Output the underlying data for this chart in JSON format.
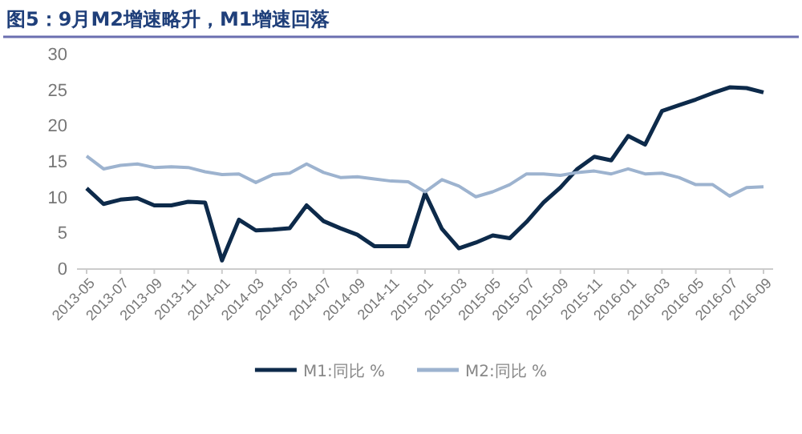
{
  "chart_data": {
    "type": "line",
    "title": "图5：9月M2增速略升，M1增速回落",
    "categories": [
      "2013-05",
      null,
      "2013-07",
      null,
      "2013-09",
      null,
      "2013-11",
      null,
      "2014-01",
      null,
      "2014-03",
      null,
      "2014-05",
      null,
      "2014-07",
      null,
      "2014-09",
      null,
      "2014-11",
      null,
      "2015-01",
      null,
      "2015-03",
      null,
      "2015-05",
      null,
      "2015-07",
      null,
      "2015-09",
      null,
      "2015-11",
      null,
      "2016-01",
      null,
      "2016-03",
      null,
      "2016-05",
      null,
      "2016-07",
      null,
      "2016-09"
    ],
    "series": [
      {
        "name": "M1:同比 %",
        "color": "#0d2a4a",
        "values": [
          11.3,
          9.1,
          9.7,
          9.9,
          8.9,
          8.9,
          9.4,
          9.3,
          1.2,
          6.9,
          5.4,
          5.5,
          5.7,
          8.9,
          6.7,
          5.7,
          4.8,
          3.2,
          3.2,
          3.2,
          10.6,
          5.6,
          2.9,
          3.7,
          4.7,
          4.3,
          6.6,
          9.3,
          11.4,
          14.0,
          15.7,
          15.2,
          18.6,
          17.4,
          22.1,
          22.9,
          23.7,
          24.6,
          25.4,
          25.3,
          24.7
        ]
      },
      {
        "name": "M2:同比 %",
        "color": "#9db3cf",
        "values": [
          15.8,
          14.0,
          14.5,
          14.7,
          14.2,
          14.3,
          14.2,
          13.6,
          13.2,
          13.3,
          12.1,
          13.2,
          13.4,
          14.7,
          13.5,
          12.8,
          12.9,
          12.6,
          12.3,
          12.2,
          10.8,
          12.5,
          11.6,
          10.1,
          10.8,
          11.8,
          13.3,
          13.3,
          13.1,
          13.5,
          13.7,
          13.3,
          14.0,
          13.3,
          13.4,
          12.8,
          11.8,
          11.8,
          10.2,
          11.4,
          11.5
        ]
      }
    ],
    "ylim": [
      0,
      30
    ],
    "yticks": [
      0,
      5,
      10,
      15,
      20,
      25,
      30
    ],
    "grid": false,
    "legend": "bottom",
    "marker": "none",
    "line_style": "solid"
  }
}
